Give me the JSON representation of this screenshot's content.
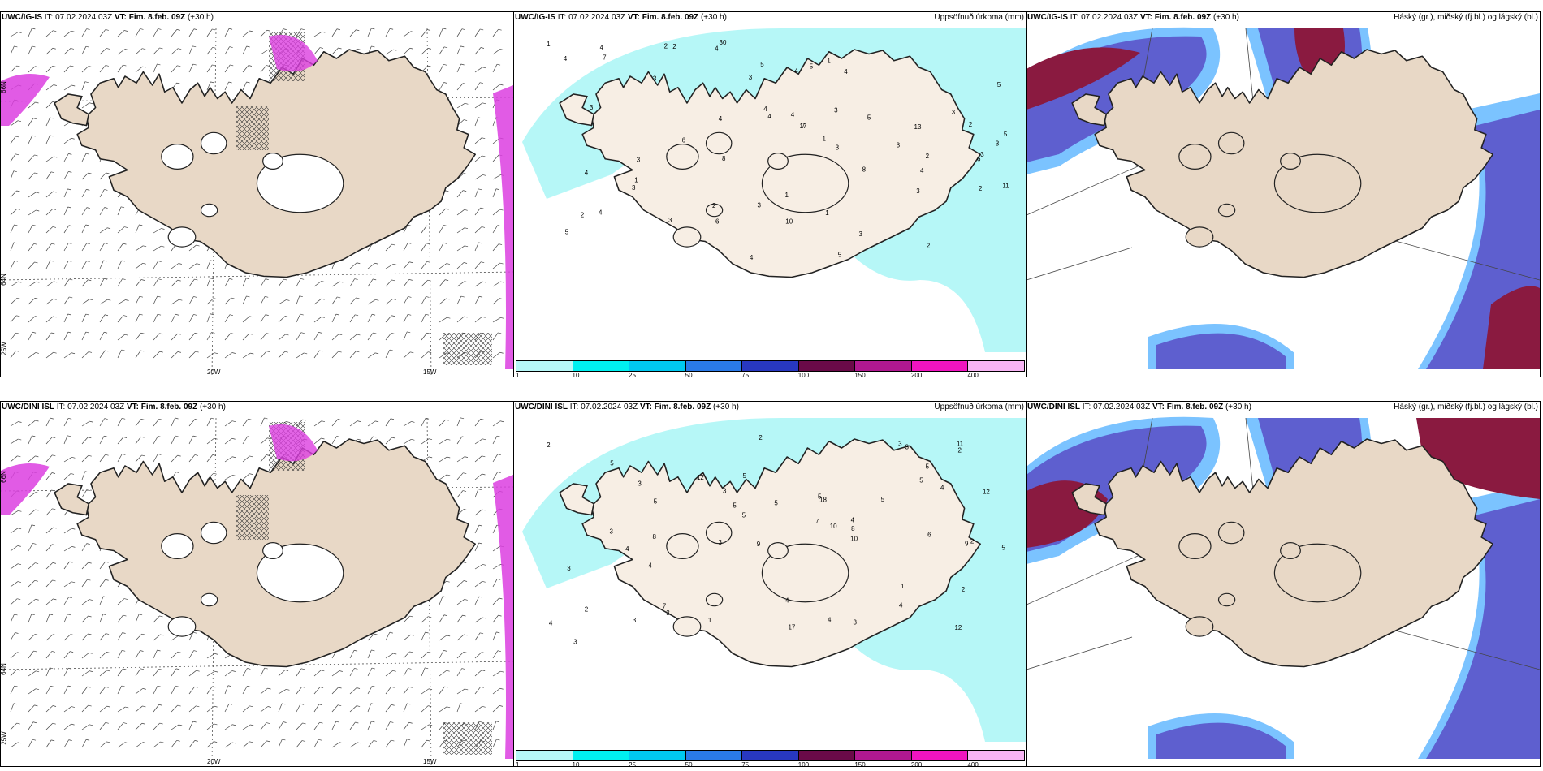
{
  "colors": {
    "land": "#e8d8c6",
    "land_light": "#f7eee4",
    "cyan": "#b6f7f7",
    "navy": "#5e5fcf",
    "maroon": "#8a1a40",
    "magenta": "#dc3ee0"
  },
  "panels": [
    {
      "id": "p1",
      "title_bold": "UWC/IG-IS",
      "title_rest": " IT: 07.02.2024 03Z ",
      "title_vt": "VT: Fim. 8.feb. 09Z",
      "title_suffix": " (+30 h)",
      "right": "",
      "lon_labels": [
        "20W",
        "15W"
      ],
      "lat_labels": [
        "66N",
        "64N",
        "25W"
      ]
    },
    {
      "id": "p2",
      "title_bold": "UWC/IG-IS",
      "title_rest": " IT: 07.02.2024 03Z ",
      "title_vt": "VT: Fim. 8.feb. 09Z",
      "title_suffix": " (+30 h)",
      "right": "Uppsöfnuð úrkoma (mm)"
    },
    {
      "id": "p3",
      "title_bold": "UWC/IG-IS",
      "title_rest": " IT: 07.02.2024 03Z ",
      "title_vt": "VT: Fim. 8.feb. 09Z",
      "title_suffix": " (+30 h)",
      "right": "Háský (gr.), miðský (fj.bl.) og lágský (bl.)"
    },
    {
      "id": "p4",
      "title_bold": "UWC/DINI ISL",
      "title_rest": " IT: 07.02.2024 03Z ",
      "title_vt": "VT: Fim. 8.feb. 09Z",
      "title_suffix": " (+30 h)",
      "right": "",
      "lon_labels": [
        "20W",
        "15W"
      ],
      "lat_labels": [
        "66N",
        "64N",
        "25W"
      ]
    },
    {
      "id": "p5",
      "title_bold": "UWC/DINI ISL",
      "title_rest": " IT: 07.02.2024 03Z ",
      "title_vt": "VT: Fim. 8.feb. 09Z",
      "title_suffix": " (+30 h)",
      "right": "Uppsöfnuð úrkoma (mm)"
    },
    {
      "id": "p6",
      "title_bold": "UWC/DINI ISL",
      "title_rest": " IT: 07.02.2024 03Z ",
      "title_vt": "VT: Fim. 8.feb. 09Z",
      "title_suffix": " (+30 h)",
      "right": "Háský (gr.), miðský (fj.bl.) og lágský (bl.)"
    }
  ],
  "colorbar": {
    "labels": [
      "1",
      "10",
      "25",
      "50",
      "75",
      "100",
      "150",
      "200",
      "400"
    ],
    "colors": [
      "#b6f7f7",
      "#00f0f0",
      "#00c8f0",
      "#2a7ae8",
      "#2838c0",
      "#6a0a48",
      "#b01890",
      "#f014c0",
      "#f7b4f4"
    ]
  },
  "precip_values_top": [
    "1",
    "8",
    "2",
    "4",
    "3",
    "2",
    "4",
    "3",
    "3",
    "2",
    "1",
    "17",
    "5",
    "4",
    "5",
    "3",
    "4",
    "6",
    "7",
    "13",
    "8",
    "3",
    "11",
    "4",
    "2",
    "5",
    "4",
    "3",
    "1",
    "2",
    "4",
    "3",
    "5",
    "7",
    "3",
    "10",
    "30",
    "3",
    "4",
    "1",
    "5",
    "6",
    "3",
    "2",
    "5",
    "4",
    "2",
    "1",
    "4",
    "3",
    "2",
    "1",
    "4",
    "3",
    "6",
    "5",
    "3",
    "4",
    "3",
    "4",
    "3"
  ],
  "precip_values_bottom": [
    "2",
    "5",
    "4",
    "2",
    "3",
    "2",
    "3",
    "4",
    "5",
    "11",
    "12",
    "3",
    "5",
    "4",
    "2",
    "4",
    "3",
    "5",
    "10",
    "5",
    "8",
    "5",
    "3",
    "7",
    "9",
    "4",
    "3",
    "5",
    "2",
    "3",
    "3",
    "4",
    "5",
    "7",
    "3",
    "17",
    "18",
    "5",
    "4",
    "4",
    "3",
    "5",
    "2",
    "6",
    "5",
    "8",
    "12",
    "12",
    "3",
    "1",
    "10",
    "9",
    "1"
  ]
}
